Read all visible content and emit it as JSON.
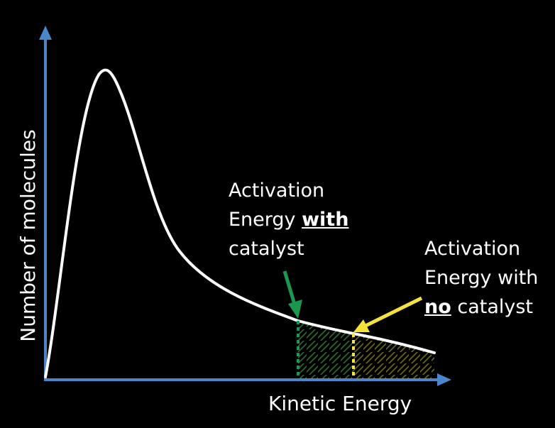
{
  "axes": {
    "y_label": "Number of molecules",
    "x_label": "Kinetic Energy"
  },
  "annotation_with_catalyst": {
    "line1": "Activation",
    "line2_prefix": "Energy ",
    "line2_emphasis": "with",
    "line3": "catalyst"
  },
  "annotation_no_catalyst": {
    "line1": "Activation",
    "line2": "Energy with",
    "line3_emphasis": "no",
    "line3_suffix": " catalyst"
  },
  "colors": {
    "background": "#000000",
    "axis": "#4a86c8",
    "curve": "#ffffff",
    "with_catalyst_marker": "#1a9850",
    "no_catalyst_marker": "#f5e23a",
    "hatch_with_catalyst": "#2e6b3a",
    "hatch_no_catalyst": "#6f6a22"
  }
}
